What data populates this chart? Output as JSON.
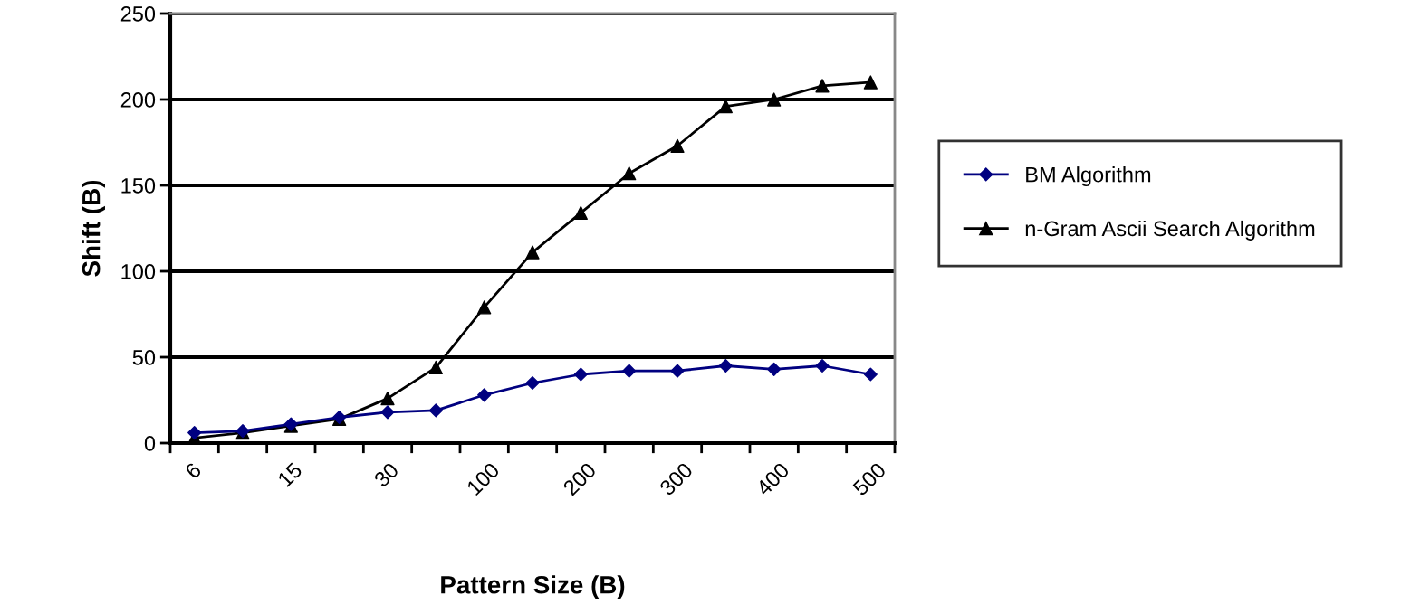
{
  "chart_data": {
    "type": "line",
    "xlabel": "Pattern Size (B)",
    "ylabel": "Shift (B)",
    "categories": [
      "6",
      null,
      "15",
      null,
      "30",
      null,
      "100",
      null,
      "200",
      null,
      "300",
      null,
      "400",
      null,
      "500"
    ],
    "series": [
      {
        "name": "BM Algorithm",
        "color": "#000080",
        "marker": "diamond",
        "values": [
          6,
          7,
          11,
          15,
          18,
          19,
          28,
          35,
          40,
          42,
          42,
          45,
          43,
          45,
          40
        ]
      },
      {
        "name": "n-Gram Ascii Search Algorithm",
        "color": "#000000",
        "marker": "triangle",
        "values": [
          3,
          6,
          10,
          14,
          26,
          44,
          79,
          111,
          134,
          157,
          173,
          196,
          200,
          208,
          210
        ]
      }
    ],
    "ylim": [
      0,
      250
    ],
    "yticks": [
      0,
      50,
      100,
      150,
      200,
      250
    ],
    "grid": "y",
    "legend": "right"
  }
}
